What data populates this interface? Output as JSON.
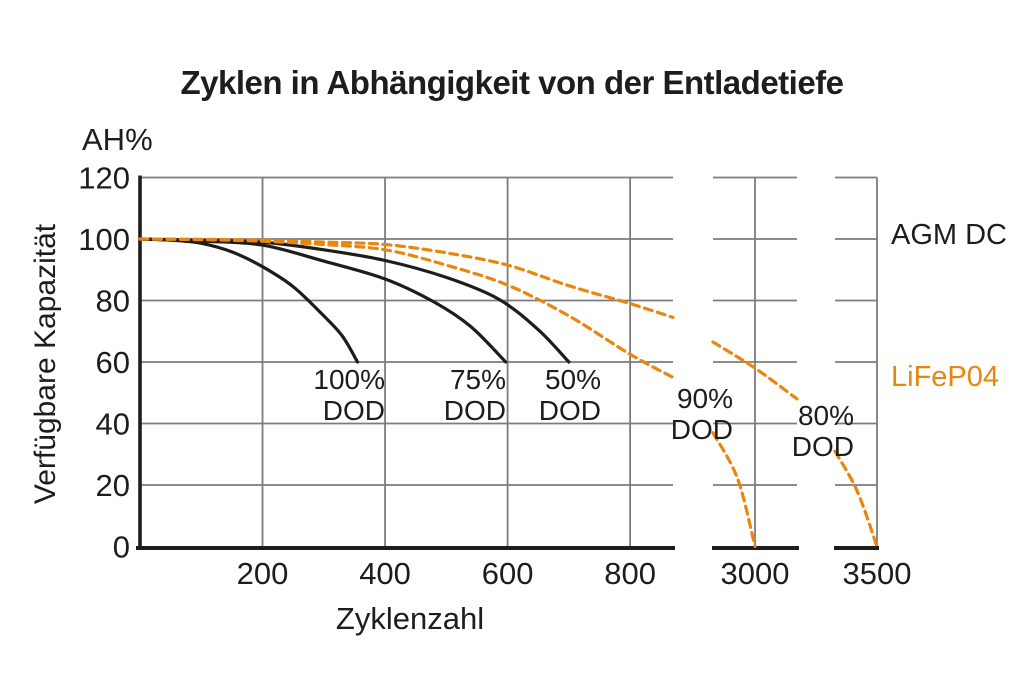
{
  "title": "Zyklen in Abhängigkeit von der Entladetiefe",
  "colors": {
    "agm_black": "#1d1d1b",
    "lifepo4_orange": "#E8860D",
    "grid_gray": "#7c7c7c",
    "background": "#ffffff"
  },
  "chart_data": {
    "type": "line",
    "title": "Zyklen in Abhängigkeit von der Entladetiefe",
    "xlabel": "Zyklenzahl",
    "ylabel": "Verfügbare Kapazität",
    "y_unit_label": "AH%",
    "ylim": [
      0,
      120
    ],
    "y_ticks": [
      120,
      100,
      80,
      60,
      40,
      20,
      0
    ],
    "x_ticks": [
      200,
      400,
      600,
      800,
      3000,
      3500
    ],
    "grid": true,
    "axis_break": {
      "broken_x_axis": true,
      "visible_cycle_ranges": [
        [
          0,
          870
        ],
        [
          2830,
          3170
        ],
        [
          3330,
          3500
        ]
      ],
      "note": "x axis has two breaks: between ~870 and ~2830 cycles and between ~3170 and ~3330 cycles"
    },
    "legend": [
      {
        "label": "AGM DC",
        "color": "#1d1d1b",
        "style": "solid"
      },
      {
        "label": "LiFeP04",
        "color": "#E8860D",
        "style": "dashed"
      }
    ],
    "series": [
      {
        "id": "agm-100-dod",
        "group": "AGM DC",
        "label": "100% DOD",
        "style": "solid",
        "color": "#1d1d1b",
        "points": [
          [
            0,
            100
          ],
          [
            50,
            99.6
          ],
          [
            100,
            98.6
          ],
          [
            150,
            95.8
          ],
          [
            200,
            91
          ],
          [
            250,
            84.5
          ],
          [
            295,
            76
          ],
          [
            330,
            68.5
          ],
          [
            355,
            60
          ]
        ]
      },
      {
        "id": "agm-75-dod",
        "group": "AGM DC",
        "label": "75% DOD",
        "style": "solid",
        "color": "#1d1d1b",
        "points": [
          [
            0,
            100
          ],
          [
            100,
            99.3
          ],
          [
            200,
            98
          ],
          [
            300,
            92.8
          ],
          [
            400,
            87
          ],
          [
            480,
            79.5
          ],
          [
            540,
            71.5
          ],
          [
            597,
            60
          ]
        ]
      },
      {
        "id": "agm-50-dod",
        "group": "AGM DC",
        "label": "50% DOD",
        "style": "solid",
        "color": "#1d1d1b",
        "points": [
          [
            0,
            100
          ],
          [
            100,
            99.6
          ],
          [
            200,
            99
          ],
          [
            300,
            96.5
          ],
          [
            400,
            93
          ],
          [
            500,
            87.5
          ],
          [
            585,
            80.5
          ],
          [
            650,
            70.5
          ],
          [
            700,
            60
          ]
        ]
      },
      {
        "id": "lifepo4-90-dod",
        "group": "LiFeP04",
        "label": "90% DOD",
        "style": "dashed",
        "color": "#E8860D",
        "points": [
          [
            0,
            100
          ],
          [
            100,
            99.8
          ],
          [
            200,
            99.3
          ],
          [
            300,
            98.2
          ],
          [
            400,
            96.5
          ],
          [
            500,
            91.5
          ],
          [
            600,
            85
          ],
          [
            700,
            75
          ],
          [
            800,
            62.5
          ],
          [
            870,
            55
          ],
          [
            2830,
            37
          ],
          [
            2930,
            22
          ],
          [
            3000,
            0
          ]
        ]
      },
      {
        "id": "lifepo4-80-dod",
        "group": "LiFeP04",
        "label": "80% DOD",
        "style": "dashed",
        "color": "#E8860D",
        "points": [
          [
            0,
            100
          ],
          [
            100,
            99.9
          ],
          [
            200,
            99.6
          ],
          [
            300,
            99
          ],
          [
            400,
            98.2
          ],
          [
            500,
            95.5
          ],
          [
            600,
            91.5
          ],
          [
            700,
            84.8
          ],
          [
            800,
            79
          ],
          [
            870,
            74.5
          ],
          [
            2830,
            66.5
          ],
          [
            3000,
            58
          ],
          [
            3170,
            48
          ],
          [
            3330,
            31
          ],
          [
            3420,
            18
          ],
          [
            3500,
            0
          ]
        ]
      }
    ],
    "annotations": [
      {
        "id": "dod-100",
        "series": "agm-100-dod",
        "lines": [
          "100%",
          "DOD"
        ]
      },
      {
        "id": "dod-75",
        "series": "agm-75-dod",
        "lines": [
          "75%",
          "DOD"
        ]
      },
      {
        "id": "dod-50",
        "series": "agm-50-dod",
        "lines": [
          "50%",
          "DOD"
        ]
      },
      {
        "id": "dod-90",
        "series": "lifepo4-90-dod",
        "lines": [
          "90%",
          "DOD"
        ]
      },
      {
        "id": "dod-80",
        "series": "lifepo4-80-dod",
        "lines": [
          "80%",
          "DOD"
        ]
      }
    ]
  }
}
